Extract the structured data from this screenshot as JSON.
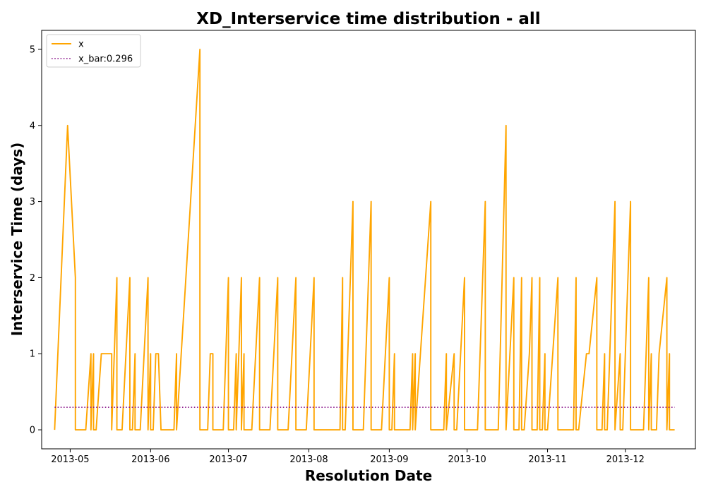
{
  "chart_data": {
    "type": "line",
    "title": "XD_Interservice time distribution - all",
    "xlabel": "Resolution Date",
    "ylabel": "Interservice Time (days)",
    "x_ticks": [
      "2013-05-01",
      "2013-06-01",
      "2013-07-01",
      "2013-08-01",
      "2013-09-01",
      "2013-10-01",
      "2013-11-01",
      "2013-12-01"
    ],
    "x_tick_labels": [
      "2013-05",
      "2013-06",
      "2013-07",
      "2013-08",
      "2013-09",
      "2013-10",
      "2013-11",
      "2013-12"
    ],
    "y_ticks": [
      0,
      1,
      2,
      3,
      4,
      5
    ],
    "y_tick_labels": [
      "0",
      "1",
      "2",
      "3",
      "4",
      "5"
    ],
    "xlim": [
      "2013-04-20",
      "2013-12-28"
    ],
    "ylim": [
      -0.25,
      5.25
    ],
    "legend": {
      "placement": "upper-left"
    },
    "grid": false,
    "series": [
      {
        "name": "x",
        "color": "#ffa500",
        "style": "solid",
        "points": [
          [
            "2013-04-25",
            0
          ],
          [
            "2013-04-30",
            4
          ],
          [
            "2013-05-03",
            2
          ],
          [
            "2013-05-03",
            0
          ],
          [
            "2013-05-07",
            0
          ],
          [
            "2013-05-09",
            1
          ],
          [
            "2013-05-09",
            0
          ],
          [
            "2013-05-10",
            1
          ],
          [
            "2013-05-10",
            0
          ],
          [
            "2013-05-11",
            0
          ],
          [
            "2013-05-13",
            1
          ],
          [
            "2013-05-17",
            1
          ],
          [
            "2013-05-17",
            0
          ],
          [
            "2013-05-19",
            2
          ],
          [
            "2013-05-19",
            0
          ],
          [
            "2013-05-21",
            0
          ],
          [
            "2013-05-24",
            2
          ],
          [
            "2013-05-24",
            0
          ],
          [
            "2013-05-25",
            0
          ],
          [
            "2013-05-26",
            1
          ],
          [
            "2013-05-26",
            0
          ],
          [
            "2013-05-28",
            0
          ],
          [
            "2013-05-31",
            2
          ],
          [
            "2013-05-31",
            0
          ],
          [
            "2013-06-01",
            1
          ],
          [
            "2013-06-01",
            0
          ],
          [
            "2013-06-02",
            0
          ],
          [
            "2013-06-03",
            1
          ],
          [
            "2013-06-04",
            1
          ],
          [
            "2013-06-05",
            0
          ],
          [
            "2013-06-10",
            0
          ],
          [
            "2013-06-11",
            1
          ],
          [
            "2013-06-11",
            0
          ],
          [
            "2013-06-20",
            5
          ],
          [
            "2013-06-20",
            0
          ],
          [
            "2013-06-23",
            0
          ],
          [
            "2013-06-24",
            1
          ],
          [
            "2013-06-25",
            1
          ],
          [
            "2013-06-25",
            0
          ],
          [
            "2013-06-27",
            0
          ],
          [
            "2013-06-29",
            0
          ],
          [
            "2013-07-01",
            2
          ],
          [
            "2013-07-01",
            0
          ],
          [
            "2013-07-03",
            0
          ],
          [
            "2013-07-04",
            1
          ],
          [
            "2013-07-04",
            0
          ],
          [
            "2013-07-06",
            2
          ],
          [
            "2013-07-06",
            0
          ],
          [
            "2013-07-07",
            1
          ],
          [
            "2013-07-07",
            0
          ],
          [
            "2013-07-10",
            0
          ],
          [
            "2013-07-13",
            2
          ],
          [
            "2013-07-13",
            0
          ],
          [
            "2013-07-17",
            0
          ],
          [
            "2013-07-20",
            2
          ],
          [
            "2013-07-20",
            0
          ],
          [
            "2013-07-24",
            0
          ],
          [
            "2013-07-27",
            2
          ],
          [
            "2013-07-27",
            0
          ],
          [
            "2013-07-31",
            0
          ],
          [
            "2013-08-03",
            2
          ],
          [
            "2013-08-03",
            0
          ],
          [
            "2013-08-13",
            0
          ],
          [
            "2013-08-14",
            2
          ],
          [
            "2013-08-14",
            0
          ],
          [
            "2013-08-15",
            0
          ],
          [
            "2013-08-18",
            3
          ],
          [
            "2013-08-18",
            0
          ],
          [
            "2013-08-22",
            0
          ],
          [
            "2013-08-25",
            3
          ],
          [
            "2013-08-25",
            0
          ],
          [
            "2013-08-29",
            0
          ],
          [
            "2013-09-01",
            2
          ],
          [
            "2013-09-01",
            0
          ],
          [
            "2013-09-02",
            0
          ],
          [
            "2013-09-03",
            1
          ],
          [
            "2013-09-03",
            0
          ],
          [
            "2013-09-09",
            0
          ],
          [
            "2013-09-10",
            1
          ],
          [
            "2013-09-10",
            0
          ],
          [
            "2013-09-11",
            1
          ],
          [
            "2013-09-11",
            0
          ],
          [
            "2013-09-17",
            3
          ],
          [
            "2013-09-17",
            0
          ],
          [
            "2013-09-22",
            0
          ],
          [
            "2013-09-23",
            1
          ],
          [
            "2013-09-23",
            0
          ],
          [
            "2013-09-26",
            1
          ],
          [
            "2013-09-26",
            0
          ],
          [
            "2013-09-27",
            0
          ],
          [
            "2013-09-30",
            2
          ],
          [
            "2013-09-30",
            0
          ],
          [
            "2013-10-05",
            0
          ],
          [
            "2013-10-08",
            3
          ],
          [
            "2013-10-08",
            0
          ],
          [
            "2013-10-13",
            0
          ],
          [
            "2013-10-16",
            4
          ],
          [
            "2013-10-16",
            0
          ],
          [
            "2013-10-19",
            2
          ],
          [
            "2013-10-19",
            0
          ],
          [
            "2013-10-21",
            0
          ],
          [
            "2013-10-22",
            2
          ],
          [
            "2013-10-22",
            0
          ],
          [
            "2013-10-23",
            0
          ],
          [
            "2013-10-25",
            1
          ],
          [
            "2013-10-26",
            2
          ],
          [
            "2013-10-26",
            0
          ],
          [
            "2013-10-28",
            0
          ],
          [
            "2013-10-29",
            2
          ],
          [
            "2013-10-29",
            0
          ],
          [
            "2013-10-30",
            0
          ],
          [
            "2013-10-31",
            1
          ],
          [
            "2013-10-31",
            0
          ],
          [
            "2013-11-01",
            0
          ],
          [
            "2013-11-05",
            2
          ],
          [
            "2013-11-05",
            0
          ],
          [
            "2013-11-11",
            0
          ],
          [
            "2013-11-12",
            2
          ],
          [
            "2013-11-12",
            0
          ],
          [
            "2013-11-13",
            0
          ],
          [
            "2013-11-16",
            1
          ],
          [
            "2013-11-17",
            1
          ],
          [
            "2013-11-20",
            2
          ],
          [
            "2013-11-20",
            0
          ],
          [
            "2013-11-22",
            0
          ],
          [
            "2013-11-23",
            1
          ],
          [
            "2013-11-23",
            0
          ],
          [
            "2013-11-24",
            0
          ],
          [
            "2013-11-27",
            3
          ],
          [
            "2013-11-27",
            0
          ],
          [
            "2013-11-29",
            1
          ],
          [
            "2013-11-29",
            0
          ],
          [
            "2013-11-30",
            0
          ],
          [
            "2013-12-03",
            3
          ],
          [
            "2013-12-03",
            0
          ],
          [
            "2013-12-08",
            0
          ],
          [
            "2013-12-10",
            2
          ],
          [
            "2013-12-10",
            0
          ],
          [
            "2013-12-11",
            1
          ],
          [
            "2013-12-11",
            0
          ],
          [
            "2013-12-13",
            0
          ],
          [
            "2013-12-14",
            1
          ],
          [
            "2013-12-17",
            2
          ],
          [
            "2013-12-17",
            0
          ],
          [
            "2013-12-18",
            1
          ],
          [
            "2013-12-18",
            0
          ],
          [
            "2013-12-20",
            0
          ]
        ]
      },
      {
        "name": "x_bar:0.296",
        "color": "#800080",
        "style": "dotted",
        "points": [
          [
            "2013-04-25",
            0.296
          ],
          [
            "2013-12-20",
            0.296
          ]
        ]
      }
    ]
  }
}
